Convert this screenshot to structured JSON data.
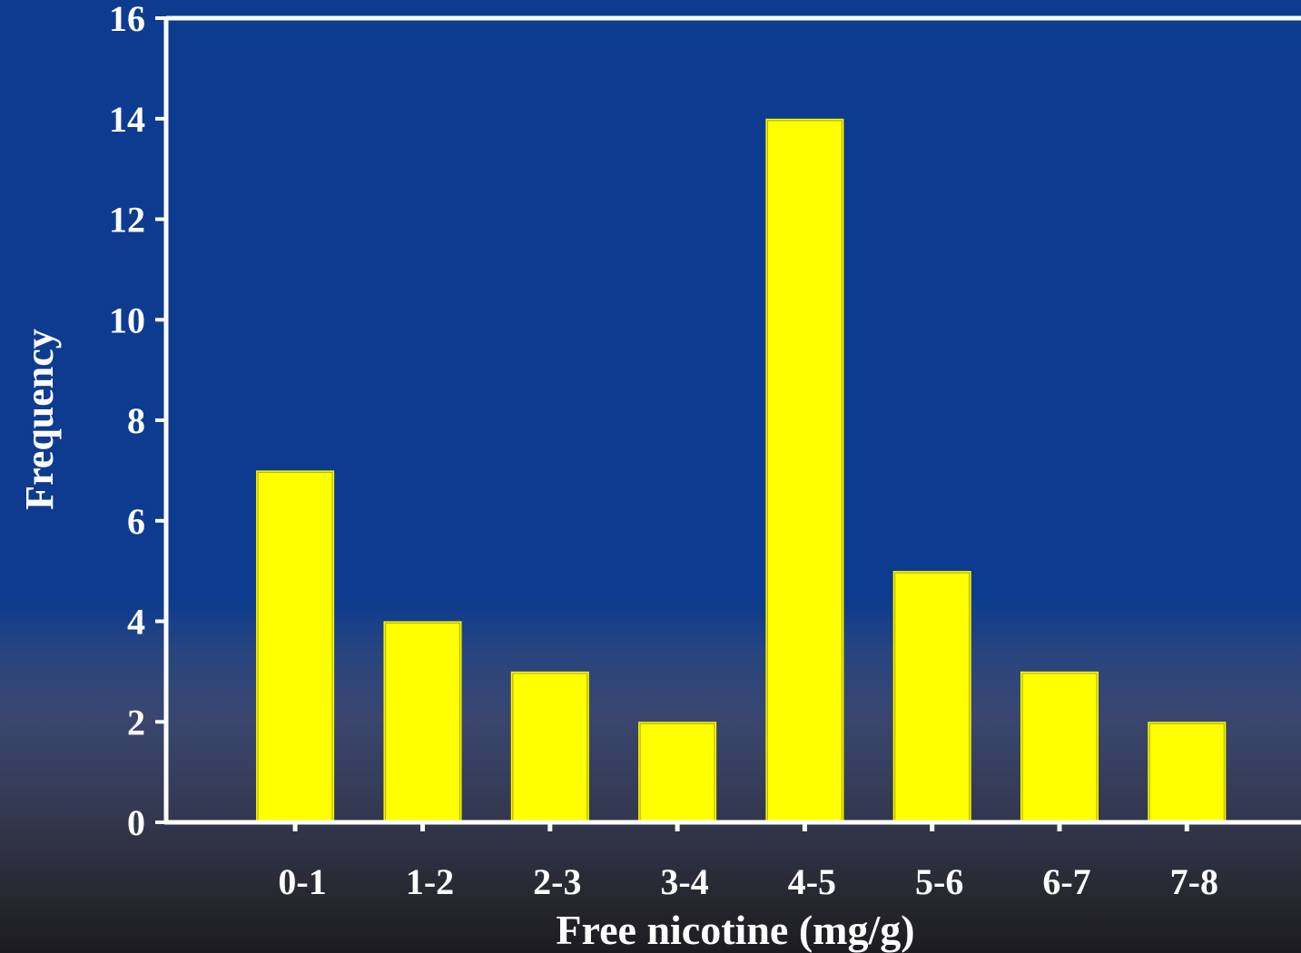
{
  "chart_data": {
    "type": "bar",
    "categories": [
      "0-1",
      "1-2",
      "2-3",
      "3-4",
      "4-5",
      "5-6",
      "6-7",
      "7-8"
    ],
    "values": [
      7,
      4,
      3,
      2,
      14,
      5,
      3,
      2
    ],
    "xlabel": "Free nicotine (mg/g)",
    "ylabel": "Frequency",
    "ylim": [
      0,
      16
    ],
    "yticks": [
      "0",
      "2",
      "4",
      "6",
      "8",
      "10",
      "12",
      "14",
      "16"
    ],
    "grid": false,
    "colors": {
      "bar": "#ffff00",
      "axis": "#ffffff",
      "text": "#ffffff",
      "background_top": "#0d3b8f",
      "background_bottom": "#1c1c20"
    }
  }
}
